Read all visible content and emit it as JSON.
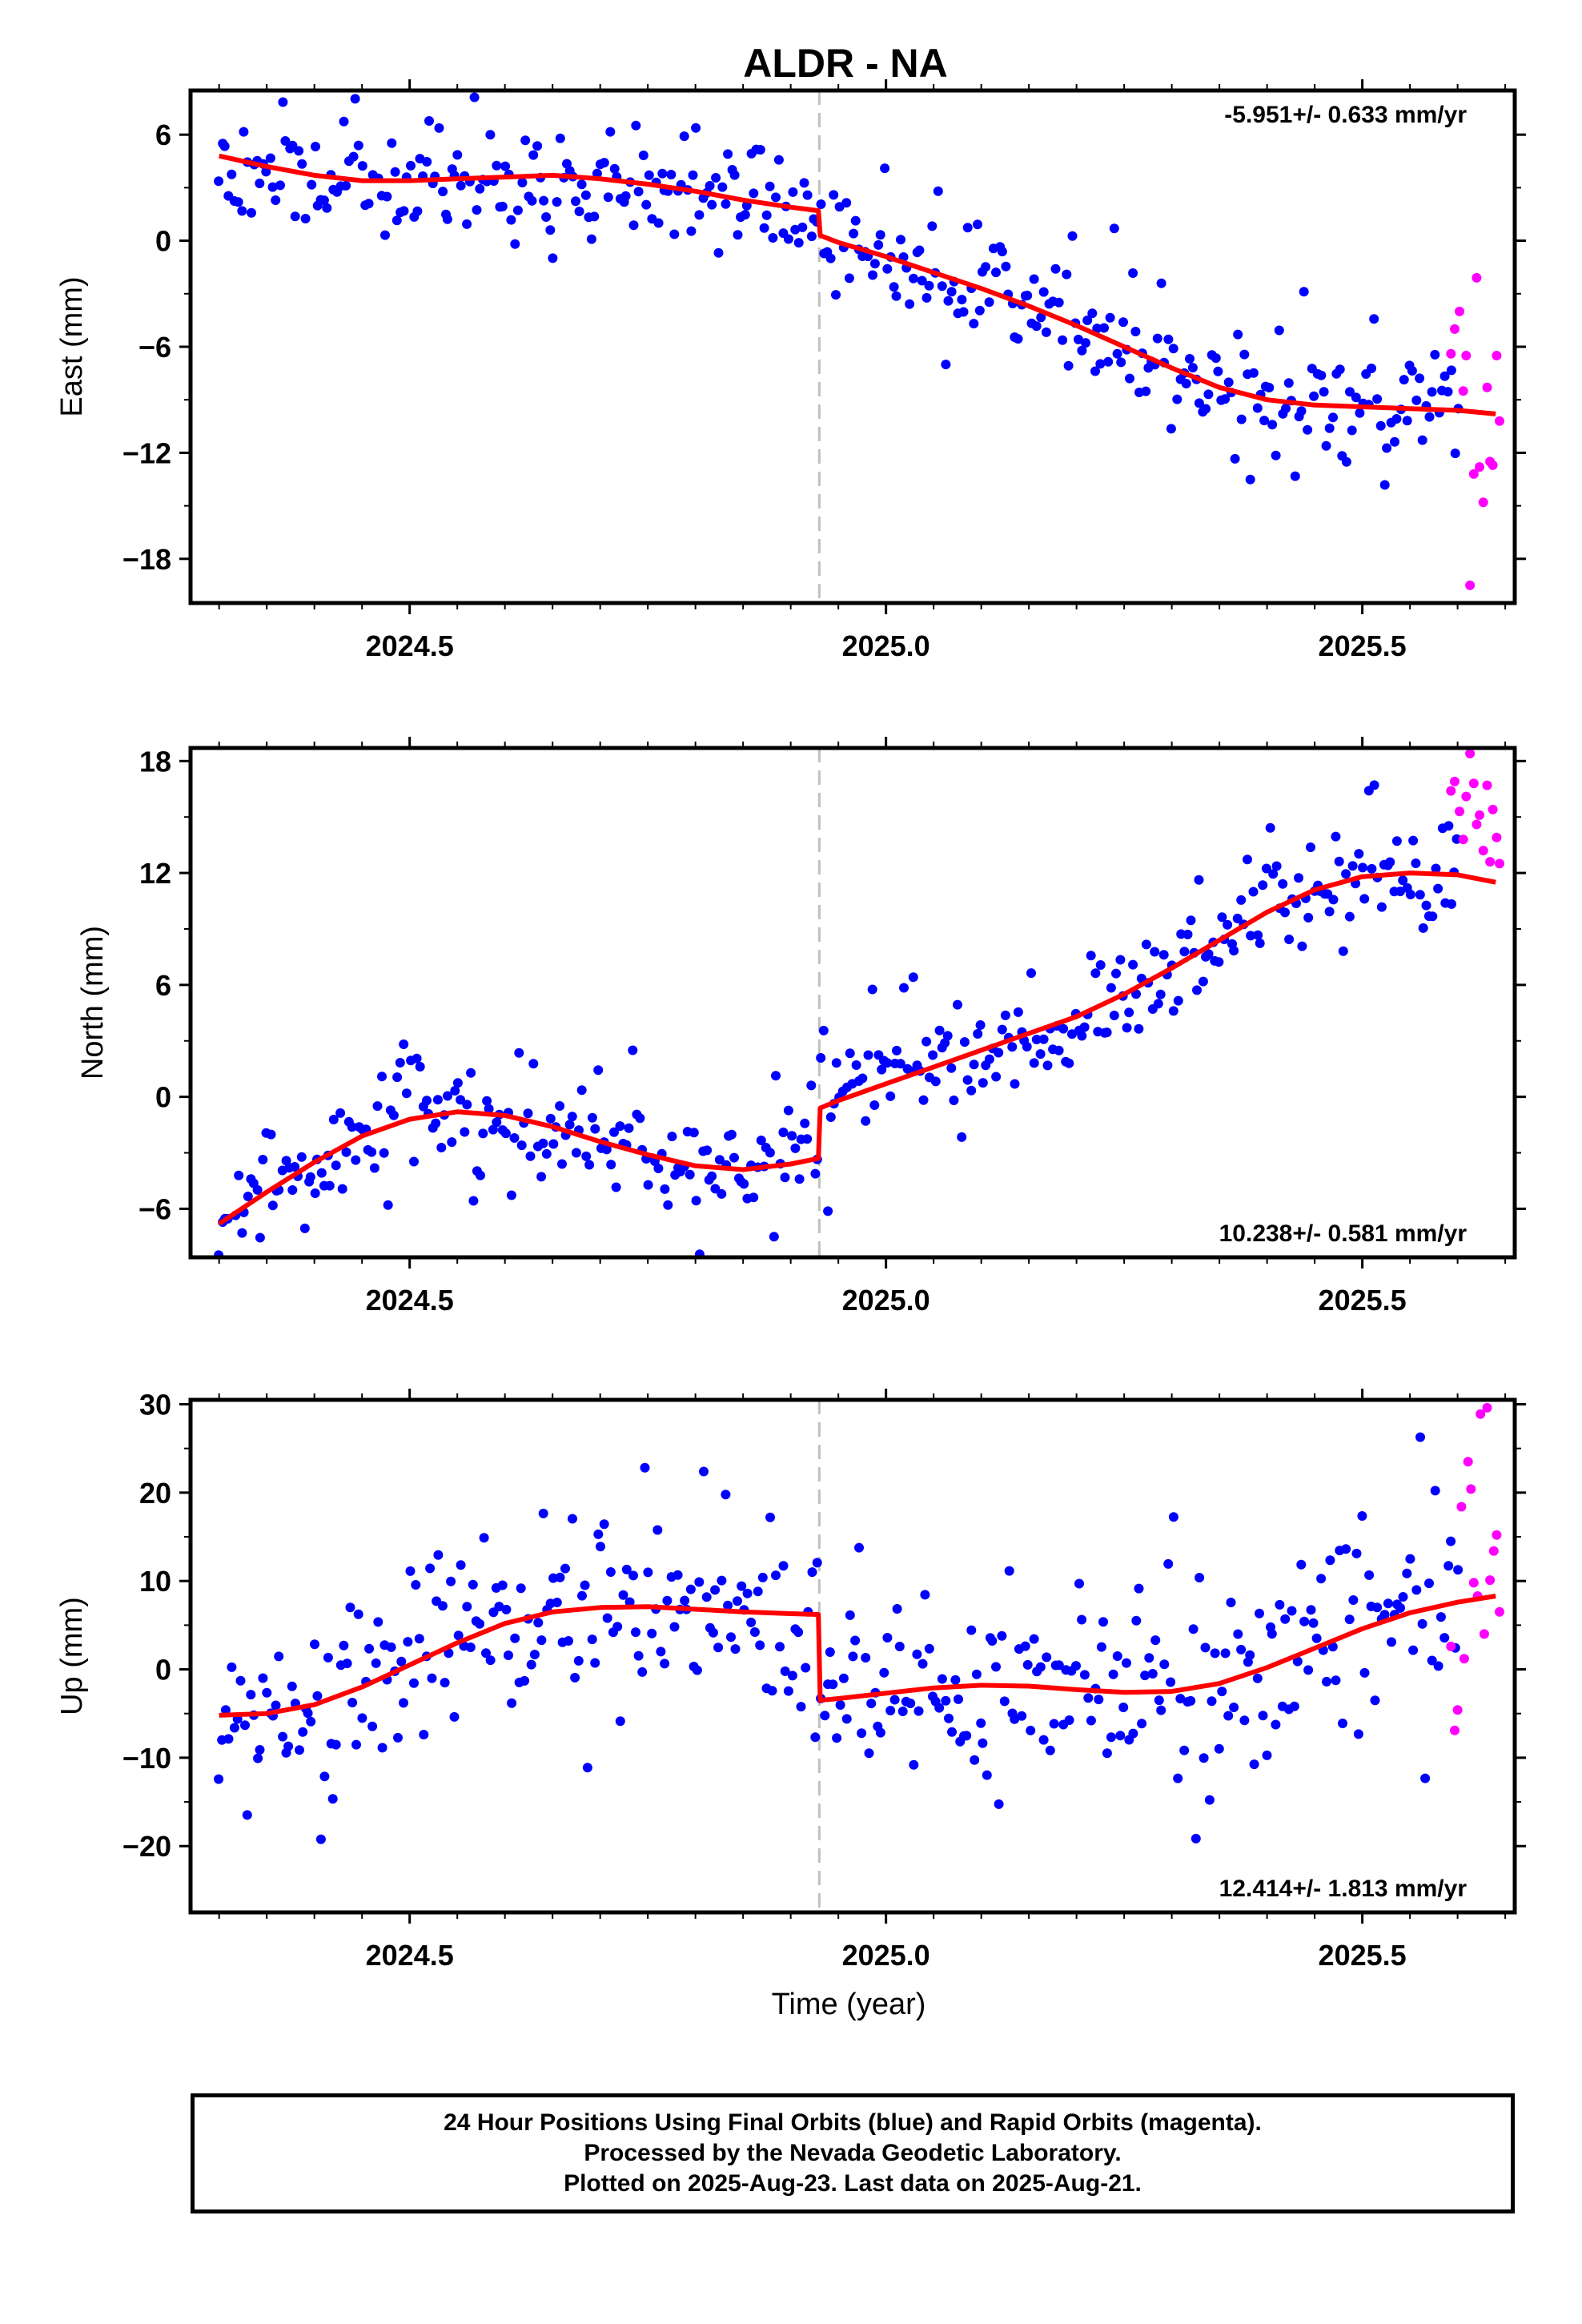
{
  "title": "ALDR - NA",
  "xlabel": "Time (year)",
  "footer": {
    "line1": "24 Hour Positions Using Final Orbits (blue) and Rapid Orbits (magenta).",
    "line2": "Processed by the Nevada Geodetic Laboratory.",
    "line3": "Plotted on 2025-Aug-23. Last data on 2025-Aug-21."
  },
  "colors": {
    "final": "#0000ff",
    "rapid": "#ff00ff",
    "model": "#ff0000",
    "step": "#c0c0c0"
  },
  "chart_data": [
    {
      "type": "scatter",
      "component": "East",
      "ylabel": "East (mm)",
      "rate_label": "-5.951+/- 0.633 mm/yr",
      "rate_position": "top-right",
      "xlim": [
        2024.27,
        2025.66
      ],
      "ylim": [
        -20.5,
        8.5
      ],
      "yticks": [
        6,
        0,
        -6,
        -12,
        -18
      ],
      "ytick_labels": [
        "6",
        "0",
        "−6",
        "−12",
        "−18"
      ],
      "xticks": [
        2024.5,
        2025.0,
        2025.5
      ],
      "xtick_labels": [
        "2024.5",
        "2025.0",
        "2025.5"
      ],
      "step_epoch": 2024.93,
      "model": {
        "x": [
          2024.3,
          2024.35,
          2024.4,
          2024.45,
          2024.5,
          2024.55,
          2024.6,
          2024.65,
          2024.7,
          2024.75,
          2024.8,
          2024.85,
          2024.9,
          2024.929,
          2024.931,
          2024.95,
          2025.0,
          2025.05,
          2025.1,
          2025.15,
          2025.2,
          2025.25,
          2025.3,
          2025.35,
          2025.4,
          2025.45,
          2025.5,
          2025.55,
          2025.6,
          2025.64
        ],
        "y": [
          4.8,
          4.2,
          3.7,
          3.4,
          3.4,
          3.5,
          3.6,
          3.7,
          3.5,
          3.2,
          2.8,
          2.3,
          1.9,
          1.7,
          0.3,
          -0.1,
          -0.9,
          -1.8,
          -2.7,
          -3.7,
          -4.8,
          -6.0,
          -7.2,
          -8.3,
          -9.0,
          -9.3,
          -9.4,
          -9.5,
          -9.6,
          -9.8
        ]
      },
      "final_series": {
        "n": 390,
        "x_start": 2024.3,
        "x_end": 2025.6,
        "scatter": 1.5,
        "seed": 11
      },
      "rapid_points": [
        {
          "x": 2025.593,
          "y": -6.4
        },
        {
          "x": 2025.597,
          "y": -5.0
        },
        {
          "x": 2025.602,
          "y": -4.0
        },
        {
          "x": 2025.606,
          "y": -8.5
        },
        {
          "x": 2025.609,
          "y": -6.5
        },
        {
          "x": 2025.613,
          "y": -19.5
        },
        {
          "x": 2025.617,
          "y": -13.2
        },
        {
          "x": 2025.62,
          "y": -2.1
        },
        {
          "x": 2025.623,
          "y": -12.8
        },
        {
          "x": 2025.627,
          "y": -14.8
        },
        {
          "x": 2025.631,
          "y": -8.3
        },
        {
          "x": 2025.634,
          "y": -12.5
        },
        {
          "x": 2025.637,
          "y": -12.7
        },
        {
          "x": 2025.641,
          "y": -6.5
        },
        {
          "x": 2025.644,
          "y": -10.2
        }
      ]
    },
    {
      "type": "scatter",
      "component": "North",
      "ylabel": "North (mm)",
      "rate_label": "10.238+/- 0.581 mm/yr",
      "rate_position": "bottom-right",
      "xlim": [
        2024.27,
        2025.66
      ],
      "ylim": [
        -8.6,
        18.7
      ],
      "yticks": [
        18,
        12,
        6,
        0,
        -6
      ],
      "ytick_labels": [
        "18",
        "12",
        "6",
        "0",
        "−6"
      ],
      "xticks": [
        2024.5,
        2025.0,
        2025.5
      ],
      "xtick_labels": [
        "2024.5",
        "2025.0",
        "2025.5"
      ],
      "step_epoch": 2024.93,
      "model": {
        "x": [
          2024.3,
          2024.35,
          2024.4,
          2024.45,
          2024.5,
          2024.55,
          2024.6,
          2024.65,
          2024.7,
          2024.75,
          2024.8,
          2024.85,
          2024.9,
          2024.929,
          2024.931,
          2024.95,
          2025.0,
          2025.05,
          2025.1,
          2025.15,
          2025.2,
          2025.25,
          2025.3,
          2025.35,
          2025.4,
          2025.45,
          2025.5,
          2025.55,
          2025.6,
          2025.64
        ],
        "y": [
          -6.8,
          -5.1,
          -3.5,
          -2.1,
          -1.2,
          -0.8,
          -1.0,
          -1.6,
          -2.4,
          -3.1,
          -3.7,
          -3.9,
          -3.6,
          -3.3,
          -0.6,
          -0.2,
          0.7,
          1.6,
          2.5,
          3.4,
          4.3,
          5.5,
          6.9,
          8.4,
          9.9,
          11.1,
          11.8,
          12.0,
          11.9,
          11.5
        ]
      },
      "final_series": {
        "n": 390,
        "x_start": 2024.3,
        "x_end": 2025.6,
        "scatter": 1.3,
        "seed": 23
      },
      "rapid_points": [
        {
          "x": 2025.593,
          "y": 16.4
        },
        {
          "x": 2025.597,
          "y": 16.9
        },
        {
          "x": 2025.602,
          "y": 15.3
        },
        {
          "x": 2025.606,
          "y": 13.8
        },
        {
          "x": 2025.609,
          "y": 16.1
        },
        {
          "x": 2025.613,
          "y": 18.4
        },
        {
          "x": 2025.617,
          "y": 16.8
        },
        {
          "x": 2025.62,
          "y": 14.6
        },
        {
          "x": 2025.623,
          "y": 15.1
        },
        {
          "x": 2025.627,
          "y": 13.2
        },
        {
          "x": 2025.631,
          "y": 16.7
        },
        {
          "x": 2025.634,
          "y": 12.6
        },
        {
          "x": 2025.637,
          "y": 15.4
        },
        {
          "x": 2025.641,
          "y": 13.9
        },
        {
          "x": 2025.644,
          "y": 12.5
        }
      ]
    },
    {
      "type": "scatter",
      "component": "Up",
      "ylabel": "Up (mm)",
      "rate_label": "12.414+/- 1.813 mm/yr",
      "rate_position": "bottom-right",
      "xlim": [
        2024.27,
        2025.66
      ],
      "ylim": [
        -27.5,
        30.5
      ],
      "yticks": [
        30,
        20,
        10,
        0,
        -10,
        -20
      ],
      "ytick_labels": [
        "30",
        "20",
        "10",
        "0",
        "−10",
        "−20"
      ],
      "xticks": [
        2024.5,
        2025.0,
        2025.5
      ],
      "xtick_labels": [
        "2024.5",
        "2025.0",
        "2025.5"
      ],
      "step_epoch": 2024.93,
      "model": {
        "x": [
          2024.3,
          2024.35,
          2024.4,
          2024.45,
          2024.5,
          2024.55,
          2024.6,
          2024.65,
          2024.7,
          2024.75,
          2024.8,
          2024.85,
          2024.9,
          2024.929,
          2024.931,
          2024.95,
          2025.0,
          2025.05,
          2025.1,
          2025.15,
          2025.2,
          2025.25,
          2025.3,
          2025.35,
          2025.4,
          2025.45,
          2025.5,
          2025.55,
          2025.6,
          2025.64
        ],
        "y": [
          -5.2,
          -5.0,
          -4.0,
          -2.0,
          0.5,
          3.0,
          5.2,
          6.5,
          7.0,
          7.1,
          6.8,
          6.5,
          6.3,
          6.2,
          -3.5,
          -3.3,
          -2.7,
          -2.1,
          -1.8,
          -1.9,
          -2.3,
          -2.6,
          -2.5,
          -1.6,
          0.2,
          2.4,
          4.6,
          6.4,
          7.6,
          8.3
        ]
      },
      "final_series": {
        "n": 390,
        "x_start": 2024.3,
        "x_end": 2025.6,
        "scatter": 5.2,
        "seed": 37
      },
      "rapid_points": [
        {
          "x": 2025.593,
          "y": 2.6
        },
        {
          "x": 2025.597,
          "y": -6.9
        },
        {
          "x": 2025.6,
          "y": -4.6
        },
        {
          "x": 2025.604,
          "y": 18.4
        },
        {
          "x": 2025.607,
          "y": 1.2
        },
        {
          "x": 2025.611,
          "y": 23.5
        },
        {
          "x": 2025.614,
          "y": 20.4
        },
        {
          "x": 2025.617,
          "y": 9.8
        },
        {
          "x": 2025.621,
          "y": 8.3
        },
        {
          "x": 2025.624,
          "y": 28.9
        },
        {
          "x": 2025.628,
          "y": 4.0
        },
        {
          "x": 2025.631,
          "y": 29.6
        },
        {
          "x": 2025.634,
          "y": 10.1
        },
        {
          "x": 2025.638,
          "y": 13.4
        },
        {
          "x": 2025.641,
          "y": 15.2
        },
        {
          "x": 2025.644,
          "y": 6.5
        }
      ]
    }
  ]
}
